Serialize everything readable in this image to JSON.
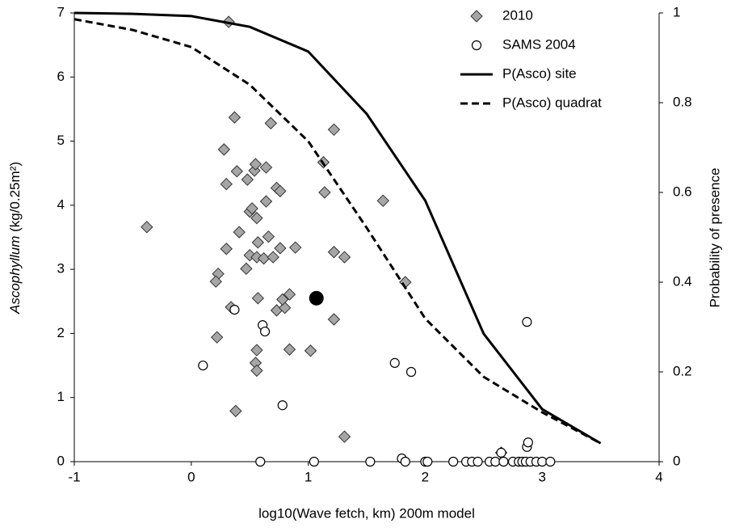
{
  "chart_data": {
    "type": "scatter",
    "x_label": "log10(Wave fetch, km) 200m model",
    "y_label_italic": "Ascophyllum",
    "y_label_rest": " (kg/0.25m²)",
    "y2_label": "Probability of presence",
    "xlim": [
      -1,
      4
    ],
    "xticks": [
      -1,
      0,
      1,
      2,
      3,
      4
    ],
    "ylim": [
      0,
      7
    ],
    "yticks": [
      0,
      1,
      2,
      3,
      4,
      5,
      6,
      7
    ],
    "y2lim": [
      0,
      1
    ],
    "y2ticks": [
      0,
      0.2,
      0.4,
      0.6,
      0.8,
      1
    ],
    "legend": "top-right",
    "series": [
      {
        "name": "2010",
        "marker": "diamond",
        "color": "#a6a6a6",
        "x": [
          -0.38,
          0.32,
          0.37,
          0.28,
          0.39,
          0.3,
          0.48,
          0.54,
          0.55,
          0.64,
          0.68,
          0.73,
          0.76,
          0.5,
          0.52,
          0.56,
          0.64,
          0.57,
          0.66,
          0.5,
          0.56,
          0.62,
          0.7,
          0.76,
          0.89,
          0.47,
          0.41,
          0.3,
          0.23,
          0.21,
          0.34,
          0.57,
          0.73,
          0.8,
          0.84,
          0.78,
          0.22,
          0.56,
          0.55,
          0.56,
          0.84,
          1.02,
          0.38,
          1.13,
          1.14,
          1.22,
          1.22,
          1.31,
          1.22,
          1.64,
          1.83,
          1.31,
          2.65
        ],
        "values": [
          3.66,
          6.86,
          5.37,
          4.87,
          4.53,
          4.33,
          4.4,
          4.54,
          4.64,
          4.59,
          5.28,
          4.27,
          4.22,
          3.9,
          3.95,
          3.8,
          4.06,
          3.42,
          3.51,
          3.22,
          3.19,
          3.17,
          3.19,
          3.33,
          3.34,
          3.01,
          3.58,
          3.32,
          2.93,
          2.81,
          2.41,
          2.55,
          2.36,
          2.4,
          2.61,
          2.53,
          1.94,
          1.74,
          1.54,
          1.42,
          1.75,
          1.73,
          0.79,
          4.67,
          4.2,
          5.18,
          3.27,
          3.19,
          2.22,
          4.07,
          2.8,
          0.39,
          0.14
        ]
      },
      {
        "name": "SAMS 2004",
        "marker": "circle",
        "color": "#ffffff",
        "x": [
          0.1,
          0.37,
          0.61,
          0.63,
          0.78,
          1.74,
          1.88,
          2.87,
          2.87,
          2.88,
          1.8,
          2.65,
          0.59,
          1.05,
          1.53,
          1.83,
          2.0,
          2.02,
          2.24,
          2.35,
          2.4,
          2.45,
          2.55,
          2.6,
          2.67,
          2.75,
          2.8,
          2.83,
          2.86,
          2.9,
          2.95,
          3.0,
          3.07
        ],
        "values": [
          1.5,
          2.37,
          2.13,
          2.03,
          0.88,
          1.54,
          1.4,
          2.18,
          0.23,
          0.3,
          0.05,
          0.14,
          0,
          0,
          0,
          0,
          0,
          0,
          0,
          0,
          0,
          0,
          0,
          0,
          0,
          0,
          0,
          0,
          0,
          0,
          0,
          0,
          0
        ]
      },
      {
        "marker": "dot",
        "color": "#000000",
        "x": [
          1.07
        ],
        "values": [
          2.55
        ]
      },
      {
        "name": "P(Asco) site",
        "marker": "line",
        "dash": "none",
        "color": "#000000",
        "axis": "y2",
        "x": [
          -1,
          -0.5,
          0,
          0.5,
          1,
          1.5,
          2,
          2.5,
          3,
          3.5
        ],
        "values": [
          1.0,
          0.998,
          0.993,
          0.969,
          0.914,
          0.775,
          0.582,
          0.285,
          0.117,
          0.041
        ]
      },
      {
        "name": "P(Asco) quadrat",
        "marker": "line",
        "dash": "9 5",
        "color": "#000000",
        "axis": "y2",
        "x": [
          -1,
          -0.5,
          0,
          0.5,
          1,
          1.5,
          2,
          2.5,
          3,
          3.5
        ],
        "values": [
          0.986,
          0.962,
          0.924,
          0.84,
          0.714,
          0.521,
          0.319,
          0.189,
          0.11,
          0.041
        ]
      }
    ]
  }
}
